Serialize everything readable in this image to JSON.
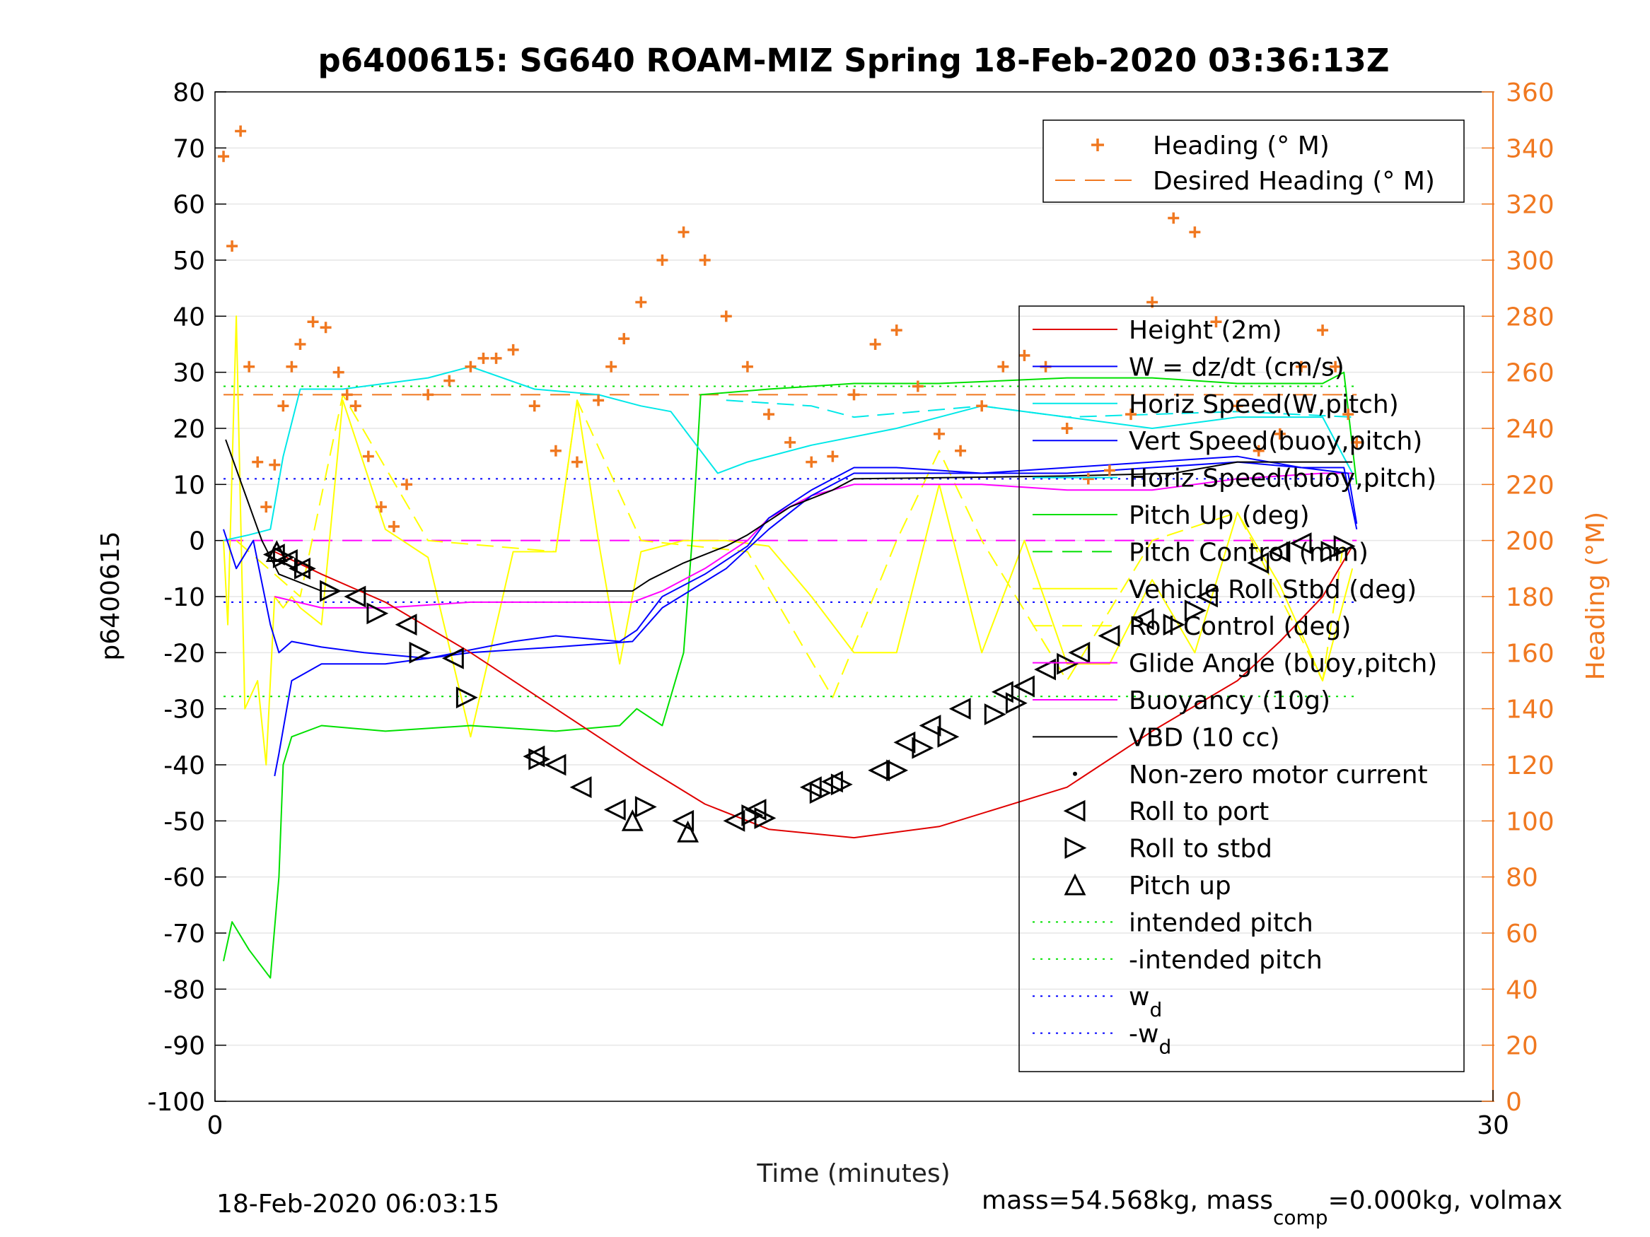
{
  "chart_data": {
    "type": "line",
    "title": "p6400615: SG640 ROAM-MIZ Spring 18-Feb-2020 03:36:13Z",
    "xlabel": "Time (minutes)",
    "ylabel": "p6400615",
    "y2label": "Heading (°M)",
    "xlim": [
      0,
      30
    ],
    "ylim": [
      -100,
      80
    ],
    "y2lim": [
      0,
      360
    ],
    "x_ticks": [
      "0",
      "30"
    ],
    "y_ticks": [
      "80",
      "70",
      "60",
      "50",
      "40",
      "30",
      "20",
      "10",
      "0",
      "-10",
      "-20",
      "-30",
      "-40",
      "-50",
      "-60",
      "-70",
      "-80",
      "-90",
      "-100"
    ],
    "y2_ticks": [
      "360",
      "340",
      "320",
      "300",
      "280",
      "260",
      "240",
      "220",
      "200",
      "180",
      "160",
      "140",
      "120",
      "100",
      "80",
      "60",
      "40",
      "20",
      "0"
    ],
    "grid": true,
    "footer_left": "18-Feb-2020 06:03:15",
    "footer_right_parts": [
      "mass=54.568kg, mass",
      "comp",
      "=0.000kg, volmax"
    ],
    "colors": {
      "heading": "#f07820",
      "height": "#e00000",
      "w": "#0000ff",
      "horiz_w": "#00e8e8",
      "pitch": "#00e000",
      "roll": "#ffff00",
      "glide": "#ff00ff",
      "vbd": "#000000"
    },
    "heading_legend": [
      {
        "label": "Heading (° M)",
        "style": "plus",
        "color": "#f07820"
      },
      {
        "label": "Desired Heading (° M)",
        "style": "dash",
        "color": "#f07820"
      }
    ],
    "legend": [
      {
        "label": "Height (2m)",
        "style": "line",
        "color": "#e00000"
      },
      {
        "label": "W = dz/dt (cm/s)",
        "style": "line",
        "color": "#0000ff"
      },
      {
        "label": "Horiz Speed(W,pitch)",
        "style": "line",
        "color": "#00e8e8"
      },
      {
        "label": "Vert Speed(buoy,pitch)",
        "style": "line",
        "color": "#0000ff"
      },
      {
        "label": "Horiz Speed(buoy,pitch)",
        "style": "line",
        "color": "#00e8e8"
      },
      {
        "label": "Pitch Up (deg)",
        "style": "line",
        "color": "#00e000"
      },
      {
        "label": "Pitch Control (mm)",
        "style": "dash",
        "color": "#00e000"
      },
      {
        "label": "Vehicle Roll Stbd (deg)",
        "style": "line",
        "color": "#ffff00"
      },
      {
        "label": "Roll Control (deg)",
        "style": "dash",
        "color": "#ffff00"
      },
      {
        "label": "Glide Angle (buoy,pitch)",
        "style": "line",
        "color": "#ff00ff"
      },
      {
        "label": "Buoyancy (10g)",
        "style": "line",
        "color": "#ff00ff"
      },
      {
        "label": "VBD (10 cc)",
        "style": "line",
        "color": "#000000"
      },
      {
        "label": "Non-zero motor current",
        "style": "dot",
        "color": "#000000"
      },
      {
        "label": "Roll to port",
        "style": "tri-left",
        "color": "#000000"
      },
      {
        "label": "Roll to stbd",
        "style": "tri-right",
        "color": "#000000"
      },
      {
        "label": "Pitch up",
        "style": "tri-up",
        "color": "#000000"
      },
      {
        "label": "intended pitch",
        "style": "dot-line",
        "color": "#00e000"
      },
      {
        "label": "-intended pitch",
        "style": "dot-line",
        "color": "#00e000"
      },
      {
        "label": "w",
        "sub": "d",
        "style": "dot-line",
        "color": "#0000ff"
      },
      {
        "label": "-w",
        "sub": "d",
        "style": "dot-line",
        "color": "#0000ff"
      }
    ],
    "reference_lines": {
      "intended_pitch": 27.5,
      "neg_intended_pitch": -27.8,
      "wd": 11,
      "neg_wd": -11,
      "desired_heading": 252
    },
    "series": {
      "height": {
        "x": [
          1.4,
          2.5,
          4.0,
          6.0,
          8.0,
          10.0,
          11.5,
          13.0,
          15.0,
          17.0,
          20.0,
          22.0,
          24.0,
          25.0,
          26.0,
          26.7
        ],
        "y": [
          -2.0,
          -6.0,
          -11.0,
          -20.0,
          -30.0,
          -40.0,
          -47.0,
          -51.5,
          -53.0,
          -51.0,
          -44.0,
          -34.0,
          -25.0,
          -18.0,
          -10.0,
          -1.0
        ]
      },
      "w": {
        "x": [
          0.2,
          0.5,
          0.9,
          1.3,
          1.5,
          1.8,
          2.5,
          3.5,
          5.0,
          7.0,
          8.0,
          9.5,
          9.9,
          10.5,
          11.5,
          12.5,
          13.0,
          14.0,
          15.0,
          16.0,
          18.0,
          20.0,
          22.0,
          24.0,
          25.5,
          26.5,
          26.8
        ],
        "y": [
          2.0,
          -5.0,
          0.0,
          -15.0,
          -20.0,
          -18.0,
          -19.0,
          -20.0,
          -21.0,
          -18.0,
          -17.0,
          -18.0,
          -16.0,
          -10.0,
          -6.0,
          -1.0,
          4.0,
          9.0,
          13.0,
          13.0,
          12.0,
          13.0,
          14.0,
          15.0,
          13.0,
          13.0,
          2.0
        ]
      },
      "vert_buoy": {
        "x": [
          1.4,
          1.5,
          1.8,
          2.5,
          4.0,
          6.0,
          8.0,
          9.8,
          10.5,
          12.0,
          13.0,
          14.0,
          15.0,
          16.0,
          18.0,
          20.0,
          22.0,
          24.0,
          25.5,
          26.6,
          26.8
        ],
        "y": [
          -42.0,
          -38.0,
          -25.0,
          -22.0,
          -22.0,
          -20.0,
          -19.0,
          -18.0,
          -12.0,
          -5.0,
          2.0,
          8.0,
          12.0,
          12.0,
          12.0,
          12.0,
          13.0,
          14.0,
          13.0,
          12.0,
          3.0
        ]
      },
      "horiz_w": {
        "x": [
          0.2,
          0.8,
          1.3,
          1.6,
          2.0,
          3.0,
          4.0,
          5.0,
          6.0,
          7.5,
          9.0,
          10.0,
          10.7,
          11.2,
          11.8,
          12.5,
          14.0,
          16.0,
          18.0,
          20.0,
          22.0,
          24.0,
          26.0,
          26.7
        ],
        "y": [
          0.0,
          1.0,
          2.0,
          15.0,
          27.0,
          27.0,
          28.0,
          29.0,
          31.0,
          27.0,
          26.0,
          24.0,
          23.0,
          18.0,
          12.0,
          14.0,
          17.0,
          20.0,
          24.0,
          22.0,
          20.0,
          22.0,
          22.0,
          12.0
        ]
      },
      "horiz_buoy": {
        "x": [
          12.0,
          14.0,
          15.0,
          18.0,
          20.0,
          24.0,
          26.7
        ],
        "y": [
          25.0,
          24.0,
          22.0,
          24.0,
          22.0,
          23.0,
          22.0
        ]
      },
      "pitch": {
        "x": [
          0.2,
          0.4,
          0.8,
          1.3,
          1.5,
          1.6,
          1.8,
          2.5,
          4.0,
          6.0,
          8.0,
          9.5,
          9.9,
          10.5,
          11.0,
          11.2,
          11.4,
          13.0,
          15.0,
          17.0,
          20.0,
          22.0,
          24.0,
          26.0,
          26.5,
          26.8
        ],
        "y": [
          -75.0,
          -68.0,
          -73.0,
          -78.0,
          -60.0,
          -40.0,
          -35.0,
          -33.0,
          -34.0,
          -33.0,
          -34.0,
          -33.0,
          -30.0,
          -33.0,
          -20.0,
          0.0,
          26.0,
          27.0,
          28.0,
          28.0,
          29.0,
          29.0,
          28.0,
          28.0,
          30.0,
          10.0
        ]
      },
      "glide": {
        "x": [
          1.4,
          2.5,
          4.0,
          6.0,
          8.0,
          9.8,
          10.5,
          11.5,
          12.5,
          13.0,
          14.0,
          15.0,
          16.0,
          18.0,
          20.0,
          22.0,
          24.0,
          26.0,
          26.7
        ],
        "y": [
          -10.0,
          -12.0,
          -12.0,
          -11.0,
          -11.0,
          -11.0,
          -9.0,
          -5.0,
          0.0,
          4.0,
          8.0,
          10.0,
          10.0,
          10.0,
          9.0,
          9.0,
          11.0,
          12.0,
          12.0
        ]
      },
      "vbd": {
        "x": [
          0.25,
          1.1,
          1.5,
          2.5,
          6.0,
          9.8,
          10.2,
          11.0,
          12.0,
          12.5,
          13.5,
          14.5,
          15.0,
          20.0,
          22.5,
          24.0,
          26.7
        ],
        "y": [
          18.0,
          0.0,
          -6.0,
          -9.0,
          -9.0,
          -9.0,
          -7.0,
          -4.0,
          -1.0,
          1.0,
          6.0,
          9.0,
          11.0,
          11.5,
          12.0,
          14.0,
          14.0
        ]
      },
      "roll": {
        "x": [
          0.2,
          0.3,
          0.5,
          0.7,
          1.0,
          1.2,
          1.4,
          1.6,
          1.8,
          2.0,
          2.5,
          3.0,
          4.0,
          5.0,
          6.0,
          7.0,
          8.0,
          8.5,
          9.0,
          9.5,
          10.0,
          11.0,
          12.0,
          13.0,
          14.0,
          15.0,
          16.0,
          17.0,
          18.0,
          19.0,
          20.0,
          21.0,
          22.0,
          23.0,
          24.0,
          25.0,
          26.0,
          26.7
        ],
        "y": [
          0.0,
          -15.0,
          40.0,
          -30.0,
          -25.0,
          -40.0,
          -10.0,
          -12.0,
          -10.0,
          -12.0,
          -15.0,
          25.0,
          2.0,
          -3.0,
          -35.0,
          -2.0,
          -2.0,
          25.0,
          0.0,
          -22.0,
          -2.0,
          0.0,
          0.0,
          -1.0,
          -10.0,
          -20.0,
          -20.0,
          10.0,
          -20.0,
          0.0,
          -22.0,
          -22.0,
          -7.0,
          -20.0,
          5.0,
          -8.0,
          -25.0,
          -5.0
        ]
      },
      "roll_control": {
        "x": [
          0.5,
          2.0,
          3.0,
          5.0,
          8.0,
          8.5,
          10.0,
          12.5,
          14.5,
          16.0,
          17.0,
          18.0,
          20.0,
          22.0,
          24.0,
          26.0,
          26.5
        ],
        "y": [
          0.0,
          -10.0,
          26.0,
          0.0,
          -2.0,
          25.0,
          0.0,
          -2.0,
          -28.0,
          0.0,
          16.0,
          0.0,
          -25.0,
          0.0,
          5.0,
          -25.0,
          0.0
        ]
      },
      "heading": {
        "x": [
          0.2,
          0.4,
          0.6,
          0.8,
          1.0,
          1.2,
          1.4,
          1.6,
          1.8,
          2.0,
          2.3,
          2.6,
          2.9,
          3.1,
          3.3,
          3.6,
          3.9,
          4.2,
          4.5,
          5.0,
          5.5,
          6.0,
          6.3,
          6.6,
          7.0,
          7.5,
          8.0,
          8.5,
          9.0,
          9.3,
          9.6,
          10.0,
          10.5,
          11.0,
          11.5,
          12.0,
          12.5,
          13.0,
          13.5,
          14.0,
          14.5,
          15.0,
          15.5,
          16.0,
          16.5,
          17.0,
          17.5,
          18.0,
          18.5,
          19.0,
          19.5,
          20.0,
          20.5,
          21.0,
          21.5,
          22.0,
          22.5,
          23.0,
          23.5,
          24.0,
          24.5,
          25.0,
          25.5,
          26.0,
          26.3,
          26.6,
          26.8
        ],
        "y": [
          337.0,
          305.0,
          346.0,
          262.0,
          228.0,
          212.0,
          227.0,
          248.0,
          262.0,
          270.0,
          278.0,
          276.0,
          260.0,
          252.0,
          248.0,
          230.0,
          212.0,
          205.0,
          220.0,
          252.0,
          257.0,
          262.0,
          265.0,
          265.0,
          268.0,
          248.0,
          232.0,
          228.0,
          250.0,
          262.0,
          272.0,
          285.0,
          300.0,
          310.0,
          300.0,
          280.0,
          262.0,
          245.0,
          235.0,
          228.0,
          230.0,
          252.0,
          270.0,
          275.0,
          255.0,
          238.0,
          232.0,
          248.0,
          262.0,
          266.0,
          262.0,
          240.0,
          222.0,
          225.0,
          245.0,
          285.0,
          315.0,
          310.0,
          278.0,
          248.0,
          232.0,
          238.0,
          262.0,
          275.0,
          262.0,
          245.0,
          235.0
        ]
      },
      "roll_port_markers": {
        "x": [
          1.4,
          1.7,
          2.0,
          3.3,
          4.5,
          5.6,
          7.5,
          8.0,
          8.6,
          9.4,
          11.0,
          12.2,
          12.7,
          14.0,
          14.5,
          15.6,
          16.2,
          16.8,
          17.5,
          18.5,
          19.0,
          19.5,
          20.3,
          21.0,
          21.8,
          23.3,
          24.5,
          25.0,
          25.5
        ],
        "y": [
          -2.5,
          -3.5,
          -5.0,
          -10.0,
          -15.0,
          -21.0,
          -38.5,
          -40.0,
          -44.0,
          -48.0,
          -50.0,
          -50.0,
          -48.0,
          -44.0,
          -43.0,
          -41.0,
          -36.0,
          -33.0,
          -30.0,
          -27.0,
          -26.0,
          -23.0,
          -20.0,
          -17.0,
          -14.0,
          -10.0,
          -4.0,
          -2.0,
          -0.5
        ]
      },
      "roll_stbd_markers": {
        "x": [
          1.6,
          2.1,
          2.7,
          3.8,
          4.8,
          5.9,
          7.6,
          10.1,
          12.6,
          12.9,
          14.2,
          14.7,
          16.0,
          16.6,
          17.2,
          18.3,
          18.8,
          20.0,
          22.5,
          23.0,
          26.2,
          26.5
        ],
        "y": [
          -3.0,
          -5.0,
          -9.0,
          -13.0,
          -20.0,
          -28.0,
          -39.0,
          -47.5,
          -49.0,
          -49.5,
          -45.0,
          -43.5,
          -41.0,
          -37.0,
          -35.0,
          -31.0,
          -29.0,
          -22.0,
          -15.0,
          -12.5,
          -2.0,
          -1.0
        ]
      },
      "pitch_up_markers": {
        "x": [
          1.45,
          9.8,
          11.1
        ],
        "y": [
          -2.0,
          -50.0,
          -52.0
        ]
      }
    }
  }
}
